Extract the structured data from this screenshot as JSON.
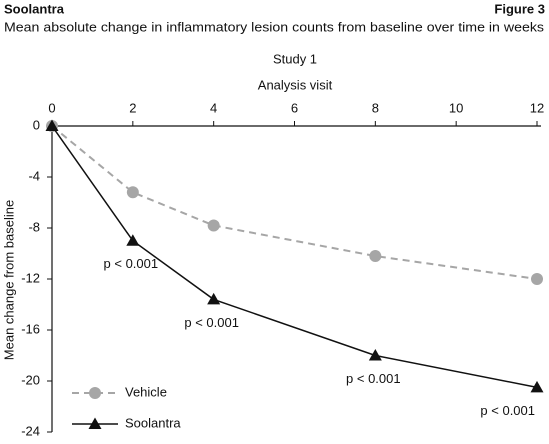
{
  "chart_data": {
    "type": "line",
    "header": "Soolantra",
    "figure_label": "Figure 3",
    "title": "Mean absolute change in inflammatory lesion counts from baseline over time in weeks",
    "subtitle": "Study 1",
    "x_label": "Analysis visit",
    "y_label": "Mean change from baseline",
    "x": [
      0,
      2,
      4,
      8,
      12
    ],
    "xlim": [
      0,
      12
    ],
    "xticks": [
      0,
      2,
      4,
      6,
      8,
      10,
      12
    ],
    "ylim": [
      -24,
      0
    ],
    "yticks": [
      -24,
      -20,
      -16,
      -12,
      -8,
      -4,
      0
    ],
    "series": [
      {
        "name": "Vehicle",
        "color": "#a6a6a6",
        "dashed": true,
        "marker": "circle",
        "values": [
          0,
          -5.2,
          -7.8,
          -10.2,
          -12.0
        ]
      },
      {
        "name": "Soolantra",
        "color": "#111111",
        "dashed": false,
        "marker": "triangle",
        "values": [
          0,
          -9.0,
          -13.6,
          -18.0,
          -20.5
        ]
      }
    ],
    "annotations": [
      "p < 0.001",
      "p < 0.001",
      "p < 0.001",
      "p < 0.001"
    ]
  }
}
